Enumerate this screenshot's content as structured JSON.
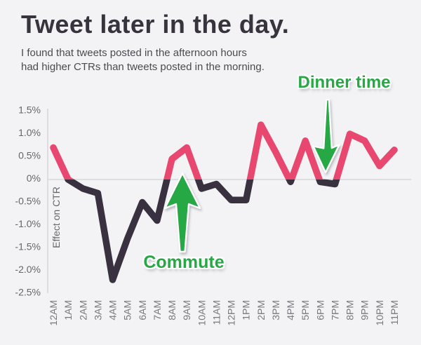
{
  "header": {
    "title": "Tweet later in the day.",
    "subtitle_lines": [
      "I found that tweets posted in the afternoon hours",
      "had higher CTRs than tweets posted in the morning."
    ]
  },
  "chart_data": {
    "type": "line",
    "title": "Tweet later in the day.",
    "xlabel": "",
    "ylabel": "Effect on CTR",
    "x_labels": [
      "12AM",
      "1AM",
      "2AM",
      "3AM",
      "4AM",
      "5AM",
      "6AM",
      "7AM",
      "8AM",
      "9AM",
      "10AM",
      "11AM",
      "12PM",
      "1PM",
      "2PM",
      "3PM",
      "4PM",
      "5PM",
      "6PM",
      "7PM",
      "8PM",
      "9PM",
      "10PM",
      "11PM"
    ],
    "values_pct": [
      0.7,
      0.0,
      -0.2,
      -0.3,
      -2.2,
      -1.3,
      -0.5,
      -0.9,
      0.45,
      0.7,
      -0.2,
      -0.1,
      -0.45,
      -0.45,
      1.2,
      0.6,
      -0.05,
      0.85,
      -0.05,
      -0.1,
      1.0,
      0.85,
      0.3,
      0.65
    ],
    "y_ticks": [
      {
        "label": "1.5%",
        "value": 1.5
      },
      {
        "label": "1.0%",
        "value": 1.0
      },
      {
        "label": "0.5%",
        "value": 0.5
      },
      {
        "label": "0%",
        "value": 0.0
      },
      {
        "label": "-0.5%",
        "value": -0.5
      },
      {
        "label": "-1.0%",
        "value": -1.0
      },
      {
        "label": "-1.5%",
        "value": -1.5
      },
      {
        "label": "-2.0%",
        "value": -2.0
      },
      {
        "label": "-2.5%",
        "value": -2.5
      }
    ],
    "ylim": [
      -2.5,
      1.5
    ],
    "grid": "zero-baseline-only",
    "legend": "none",
    "line_color_rule": "pink above 0%, dark below 0%",
    "annotations": [
      {
        "label": "Commute",
        "arrow": "up",
        "points_at": "8AM-9AM positive spike"
      },
      {
        "label": "Dinner time",
        "arrow": "down",
        "points_at": "6PM-7PM dip"
      }
    ],
    "colors": {
      "line_positive": "#e8486f",
      "line_negative": "#39313f",
      "annotation_green": "#27a845",
      "axis_gray": "#d8d7da",
      "tick_text": "#67656c",
      "x_tick_text": "#7a787f",
      "title_text": "#37343d",
      "subtitle_text": "#4c4a51",
      "background": "#f3f3f5"
    }
  }
}
